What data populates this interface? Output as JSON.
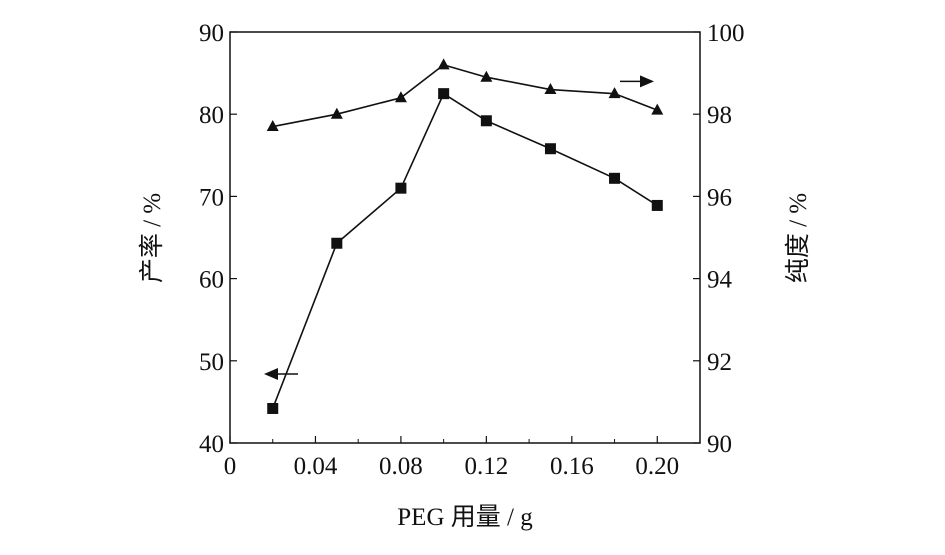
{
  "chart_data": {
    "type": "line",
    "xlabel": "PEG 用量 / g",
    "ylabel_left": "产率 / %",
    "ylabel_right": "纯度 / %",
    "x_ticks": [
      "0",
      "0.04",
      "0.08",
      "0.12",
      "0.16",
      "0.20"
    ],
    "y_left_ticks": [
      "40",
      "50",
      "60",
      "70",
      "80",
      "90"
    ],
    "y_right_ticks": [
      "90",
      "92",
      "94",
      "96",
      "98",
      "100"
    ],
    "xlim": [
      0,
      0.22
    ],
    "ylim_left": [
      40,
      90
    ],
    "ylim_right": [
      90,
      100
    ],
    "grid": false,
    "series": [
      {
        "axis": "left",
        "marker": "square",
        "x": [
          0.02,
          0.05,
          0.08,
          0.1,
          0.12,
          0.15,
          0.18,
          0.2
        ],
        "values": [
          44.2,
          64.3,
          71.0,
          82.5,
          79.2,
          75.8,
          72.2,
          68.9
        ]
      },
      {
        "axis": "right",
        "marker": "triangle",
        "x": [
          0.02,
          0.05,
          0.08,
          0.1,
          0.12,
          0.15,
          0.18,
          0.2
        ],
        "values": [
          97.7,
          98.0,
          98.4,
          99.2,
          98.9,
          98.6,
          98.5,
          98.1
        ]
      }
    ],
    "annotations": [
      {
        "type": "arrow",
        "points_to": "left-axis",
        "near_series": 0
      },
      {
        "type": "arrow",
        "points_to": "right-axis",
        "near_series": 1
      }
    ]
  }
}
